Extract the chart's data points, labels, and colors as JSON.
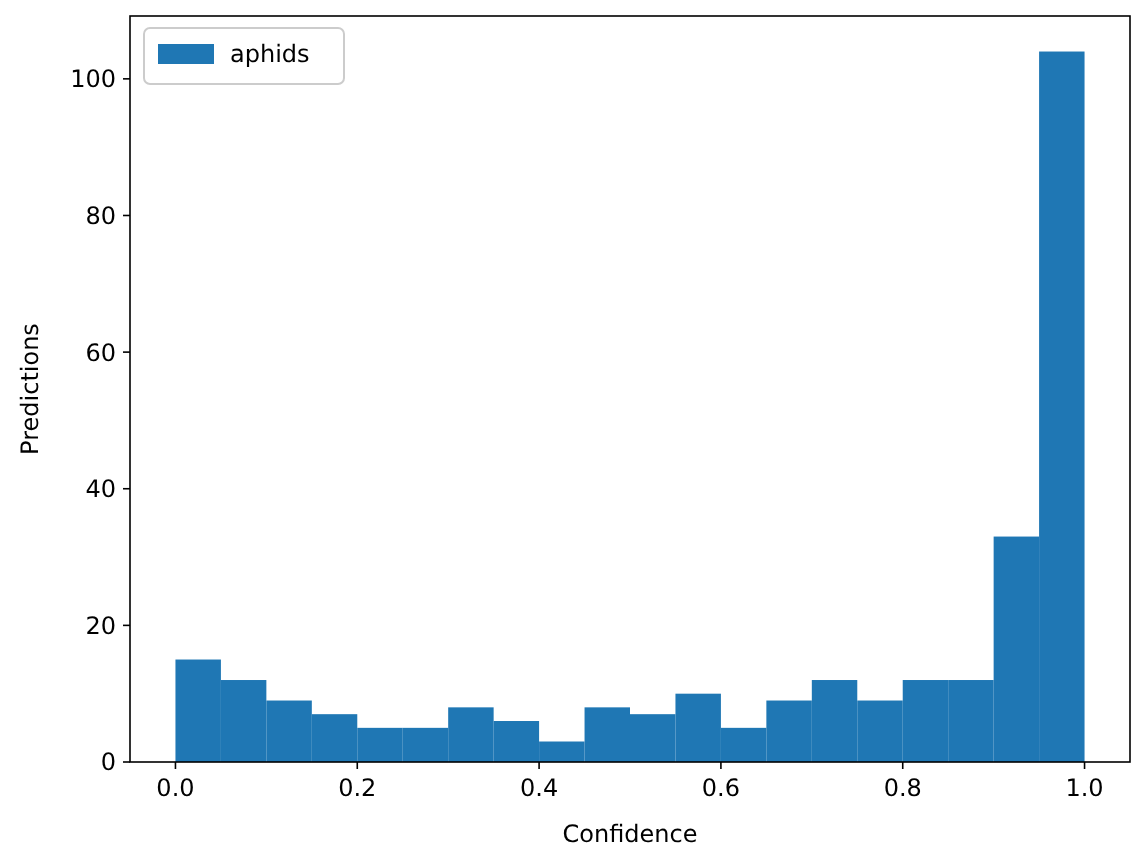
{
  "chart_data": {
    "type": "histogram",
    "xlabel": "Confidence",
    "ylabel": "Predictions",
    "bins": [
      0,
      0.05,
      0.1,
      0.15,
      0.2,
      0.25,
      0.3,
      0.35,
      0.4,
      0.45,
      0.5,
      0.55,
      0.6,
      0.65,
      0.7,
      0.75,
      0.8,
      0.85,
      0.9,
      0.95,
      1.0
    ],
    "series": [
      {
        "name": "aphids",
        "color": "#1f77b4",
        "values": [
          15,
          12,
          9,
          7,
          5,
          5,
          8,
          6,
          3,
          8,
          7,
          10,
          5,
          9,
          12,
          9,
          12,
          12,
          33,
          104
        ]
      }
    ],
    "xlim": [
      -0.05,
      1.05
    ],
    "ylim": [
      0,
      109.2
    ],
    "xticks": [
      {
        "value": 0,
        "label": "0.0"
      },
      0.2,
      0.4,
      0.6,
      0.8,
      {
        "value": 1,
        "label": "1.0"
      }
    ],
    "yticks": [
      0,
      20,
      40,
      60,
      80,
      100
    ],
    "legend": "top left",
    "grid": false
  }
}
